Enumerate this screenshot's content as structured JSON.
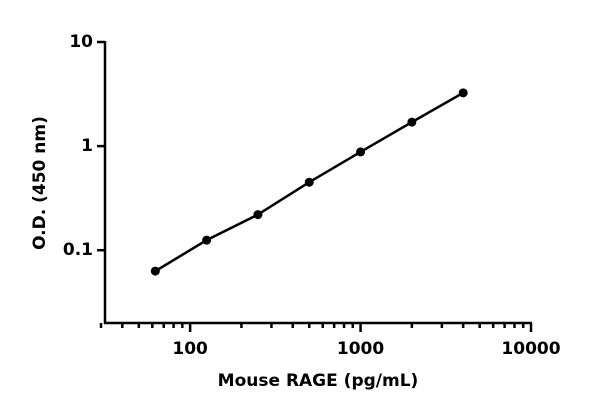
{
  "chart_data": {
    "type": "line",
    "x_label": "Mouse RAGE (pg/mL)",
    "y_label": "O.D. (450 nm)",
    "x": [
      62.5,
      125,
      250,
      500,
      1000,
      2000,
      4000
    ],
    "series": [
      {
        "color": "#000000",
        "values": [
          0.063,
          0.125,
          0.22,
          0.45,
          0.88,
          1.7,
          3.25
        ]
      }
    ],
    "xlog": true,
    "ylog": true,
    "xlim": [
      30,
      10000
    ],
    "xticks": [
      100,
      1000,
      10000
    ],
    "xminorticks": [
      30,
      40,
      50,
      60,
      70,
      80,
      90,
      200,
      300,
      400,
      500,
      600,
      700,
      800,
      900,
      2000,
      3000,
      4000,
      5000,
      6000,
      7000,
      8000,
      9000
    ],
    "ylim": [
      0.02,
      10
    ],
    "yticks": [
      0.1,
      1,
      10
    ]
  }
}
